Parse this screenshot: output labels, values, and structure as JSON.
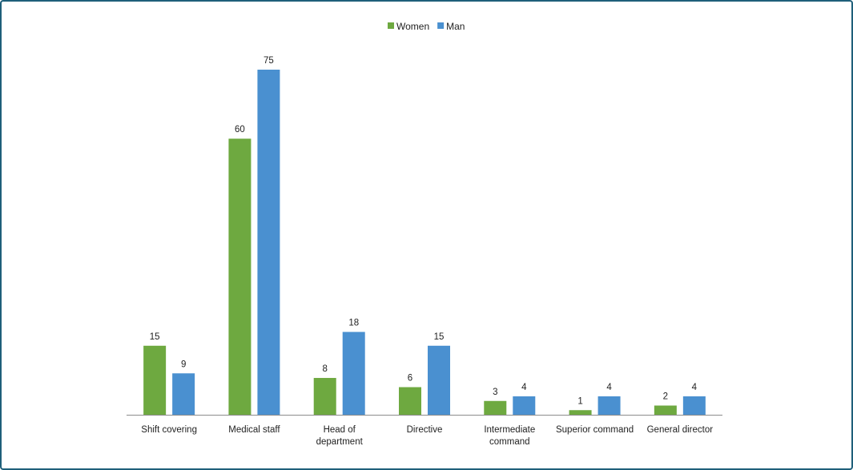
{
  "chart_data": {
    "type": "bar",
    "title": "",
    "xlabel": "",
    "ylabel": "",
    "ylim": [
      0,
      75
    ],
    "grid": false,
    "legend_position": "top-center",
    "categories": [
      "Shift covering",
      "Medical staff",
      "Head of department",
      "Directive",
      "Intermediate command",
      "Superior command",
      "General director"
    ],
    "category_lines": [
      [
        "Shift covering"
      ],
      [
        "Medical staff"
      ],
      [
        "Head of",
        "department"
      ],
      [
        "Directive"
      ],
      [
        "Intermediate",
        "command"
      ],
      [
        "Superior command"
      ],
      [
        "General director"
      ]
    ],
    "series": [
      {
        "name": "Women",
        "color": "#6ea940",
        "values": [
          15,
          60,
          8,
          6,
          3,
          1,
          2
        ]
      },
      {
        "name": "Man",
        "color": "#4a90d0",
        "values": [
          9,
          75,
          18,
          15,
          4,
          4,
          4
        ]
      }
    ]
  }
}
